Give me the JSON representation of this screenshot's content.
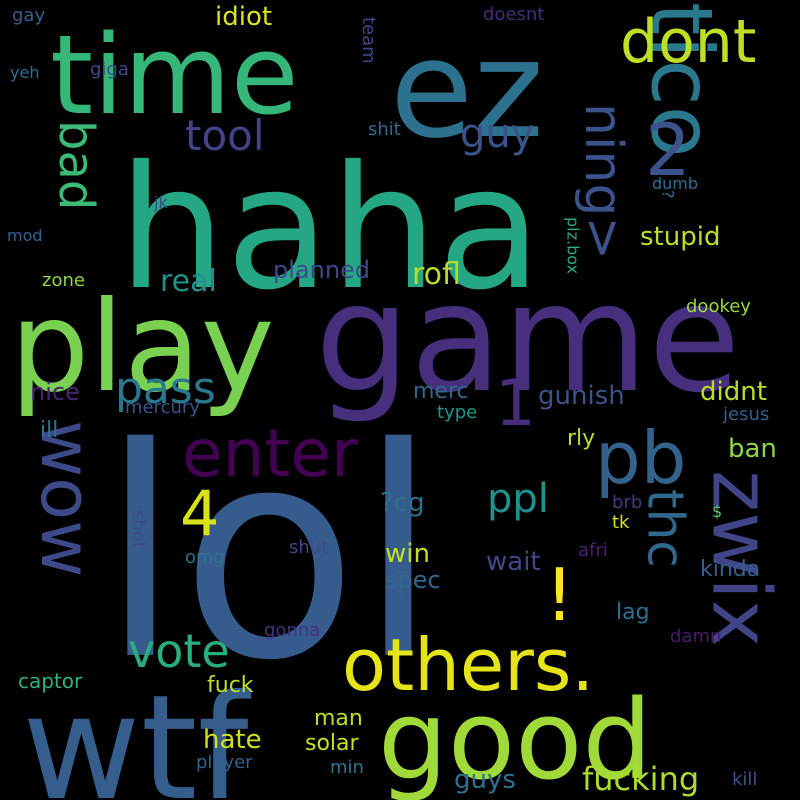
{
  "words": [
    {
      "text": "lol",
      "color": "#365c8d",
      "weight": 100,
      "orientation": "horizontal"
    },
    {
      "text": "haha",
      "color": "#26a784",
      "weight": 90,
      "orientation": "horizontal"
    },
    {
      "text": "game",
      "color": "#46307e",
      "weight": 85,
      "orientation": "horizontal"
    },
    {
      "text": "wtf",
      "color": "#355e8d",
      "weight": 82,
      "orientation": "horizontal"
    },
    {
      "text": "play",
      "color": "#7ad151",
      "weight": 80,
      "orientation": "horizontal"
    },
    {
      "text": "time",
      "color": "#35b779",
      "weight": 78,
      "orientation": "horizontal"
    },
    {
      "text": "ez",
      "color": "#2c728e",
      "weight": 76,
      "orientation": "horizontal"
    },
    {
      "text": "good",
      "color": "#a0da39",
      "weight": 74,
      "orientation": "horizontal"
    },
    {
      "text": "tico",
      "color": "#2a788e",
      "weight": 70,
      "orientation": "vertical"
    },
    {
      "text": "zwix",
      "color": "#414487",
      "weight": 66,
      "orientation": "vertical"
    },
    {
      "text": "others.",
      "color": "#e5e419",
      "weight": 60,
      "orientation": "horizontal"
    },
    {
      "text": "pb",
      "color": "#33638d",
      "weight": 58,
      "orientation": "horizontal"
    },
    {
      "text": "wow",
      "color": "#3e4989",
      "weight": 56,
      "orientation": "vertical"
    },
    {
      "text": "enter",
      "color": "#440154",
      "weight": 52,
      "orientation": "horizontal"
    },
    {
      "text": "1",
      "color": "#472d7b",
      "weight": 50,
      "orientation": "horizontal"
    },
    {
      "text": "2",
      "color": "#3b528b",
      "weight": 50,
      "orientation": "horizontal"
    },
    {
      "text": "4",
      "color": "#d8e219",
      "weight": 48,
      "orientation": "horizontal"
    },
    {
      "text": "!",
      "color": "#fde725",
      "weight": 48,
      "orientation": "horizontal"
    },
    {
      "text": "dont",
      "color": "#bddf26",
      "weight": 46,
      "orientation": "horizontal"
    },
    {
      "text": "ning>",
      "color": "#3b528b",
      "weight": 44,
      "orientation": "vertical"
    },
    {
      "text": "thc",
      "color": "#31688e",
      "weight": 42,
      "orientation": "vertical"
    },
    {
      "text": "vote",
      "color": "#29af7f",
      "weight": 40,
      "orientation": "horizontal"
    },
    {
      "text": "bad",
      "color": "#3bbb75",
      "weight": 40,
      "orientation": "vertical"
    },
    {
      "text": "pass",
      "color": "#2a788e",
      "weight": 40,
      "orientation": "horizontal"
    },
    {
      "text": "tool",
      "color": "#414487",
      "weight": 38,
      "orientation": "horizontal"
    },
    {
      "text": "guy",
      "color": "#3b528b",
      "weight": 36,
      "orientation": "horizontal"
    },
    {
      "text": "ppl",
      "color": "#21918c",
      "weight": 36,
      "orientation": "horizontal"
    },
    {
      "text": "fucking",
      "color": "#addc30",
      "weight": 30,
      "orientation": "horizontal"
    },
    {
      "text": "rofl",
      "color": "#b5de2b",
      "weight": 28,
      "orientation": "horizontal"
    },
    {
      "text": "real",
      "color": "#21918c",
      "weight": 28,
      "orientation": "horizontal"
    },
    {
      "text": "idiot",
      "color": "#dde318",
      "weight": 26,
      "orientation": "horizontal"
    },
    {
      "text": "stupid",
      "color": "#bddf26",
      "weight": 26,
      "orientation": "horizontal"
    },
    {
      "text": "gunish",
      "color": "#3b528b",
      "weight": 26,
      "orientation": "horizontal"
    },
    {
      "text": "nice",
      "color": "#482475",
      "weight": 24,
      "orientation": "horizontal"
    },
    {
      "text": "planned",
      "color": "#3e4989",
      "weight": 24,
      "orientation": "horizontal"
    },
    {
      "text": "hate",
      "color": "#d0e11c",
      "weight": 24,
      "orientation": "horizontal"
    },
    {
      "text": "win",
      "color": "#c2df23",
      "weight": 24,
      "orientation": "horizontal"
    },
    {
      "text": "guys",
      "color": "#2c728e",
      "weight": 24,
      "orientation": "horizontal"
    },
    {
      "text": "didnt",
      "color": "#bade28",
      "weight": 24,
      "orientation": "horizontal"
    },
    {
      "text": "ban",
      "color": "#8fd744",
      "weight": 24,
      "orientation": "horizontal"
    },
    {
      "text": "wait",
      "color": "#3e4a89",
      "weight": 24,
      "orientation": "horizontal"
    },
    {
      "text": "?cg",
      "color": "#2d708e",
      "weight": 24,
      "orientation": "horizontal"
    },
    {
      "text": "merc",
      "color": "#31688e",
      "weight": 22,
      "orientation": "horizontal"
    },
    {
      "text": "ill",
      "color": "#2a788e",
      "weight": 22,
      "orientation": "horizontal"
    },
    {
      "text": "spec",
      "color": "#31688e",
      "weight": 22,
      "orientation": "horizontal"
    },
    {
      "text": "lag",
      "color": "#2c728e",
      "weight": 22,
      "orientation": "horizontal"
    },
    {
      "text": "rly",
      "color": "#b5de2b",
      "weight": 22,
      "orientation": "horizontal"
    },
    {
      "text": "kinda",
      "color": "#35608d",
      "weight": 22,
      "orientation": "horizontal"
    },
    {
      "text": "fuck",
      "color": "#bddf26",
      "weight": 20,
      "orientation": "horizontal"
    },
    {
      "text": "captor",
      "color": "#2db27d",
      "weight": 20,
      "orientation": "horizontal"
    },
    {
      "text": "man",
      "color": "#bddf26",
      "weight": 20,
      "orientation": "horizontal"
    },
    {
      "text": "solar",
      "color": "#c8e020",
      "weight": 20,
      "orientation": "horizontal"
    },
    {
      "text": "zone",
      "color": "#8fd744",
      "weight": 20,
      "orientation": "horizontal"
    },
    {
      "text": "mercury",
      "color": "#3b528b",
      "weight": 18,
      "orientation": "horizontal"
    },
    {
      "text": "brb",
      "color": "#443983",
      "weight": 18,
      "orientation": "horizontal"
    },
    {
      "text": "tk",
      "color": "#d2e21b",
      "weight": 18,
      "orientation": "horizontal"
    },
    {
      "text": "type",
      "color": "#1f9a8a",
      "weight": 18,
      "orientation": "horizontal"
    },
    {
      "text": "jesus",
      "color": "#355f8d",
      "weight": 18,
      "orientation": "horizontal"
    },
    {
      "text": "dookey",
      "color": "#9bd93c",
      "weight": 18,
      "orientation": "horizontal"
    },
    {
      "text": "shut",
      "color": "#3e4989",
      "weight": 18,
      "orientation": "horizontal"
    },
    {
      "text": "afri",
      "color": "#482173",
      "weight": 18,
      "orientation": "horizontal"
    },
    {
      "text": "omg",
      "color": "#2c728e",
      "weight": 18,
      "orientation": "horizontal"
    },
    {
      "text": "shot",
      "color": "#3e4989",
      "weight": 18,
      "orientation": "vertical"
    },
    {
      "text": "gonna",
      "color": "#46337f",
      "weight": 18,
      "orientation": "horizontal"
    },
    {
      "text": "damn",
      "color": "#481b6d",
      "weight": 18,
      "orientation": "horizontal"
    },
    {
      "text": "player",
      "color": "#33638d",
      "weight": 18,
      "orientation": "horizontal"
    },
    {
      "text": "min",
      "color": "#2a788e",
      "weight": 18,
      "orientation": "horizontal"
    },
    {
      "text": "kill",
      "color": "#3b528b",
      "weight": 18,
      "orientation": "horizontal"
    },
    {
      "text": "gay",
      "color": "#35608d",
      "weight": 18,
      "orientation": "horizontal"
    },
    {
      "text": "team",
      "color": "#3e4989",
      "weight": 18,
      "orientation": "vertical"
    },
    {
      "text": "doesnt",
      "color": "#472c7a",
      "weight": 18,
      "orientation": "horizontal"
    },
    {
      "text": "yeh",
      "color": "#2e6e8e",
      "weight": 16,
      "orientation": "horizontal"
    },
    {
      "text": "giga",
      "color": "#3e4989",
      "weight": 16,
      "orientation": "horizontal"
    },
    {
      "text": "shit",
      "color": "#2f6c8e",
      "weight": 16,
      "orientation": "horizontal"
    },
    {
      "text": "dumb",
      "color": "#2d708e",
      "weight": 16,
      "orientation": "horizontal"
    },
    {
      "text": "jk",
      "color": "#3e4989",
      "weight": 16,
      "orientation": "horizontal"
    },
    {
      "text": "mod",
      "color": "#33638d",
      "weight": 16,
      "orientation": "horizontal"
    },
    {
      "text": "?",
      "color": "#2c728e",
      "weight": 16,
      "orientation": "vertical"
    },
    {
      "text": "plz.box",
      "color": "#28ae80",
      "weight": 16,
      "orientation": "vertical"
    },
    {
      "text": "$",
      "color": "#5ec962",
      "weight": 16,
      "orientation": "horizontal"
    }
  ]
}
